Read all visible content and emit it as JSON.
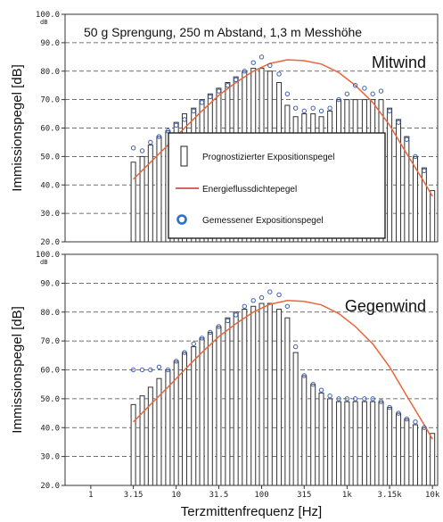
{
  "chart_data": [
    {
      "type": "bar",
      "title": "50 g Sprengung, 250 m Abstand, 1,3 m Messhöhe",
      "annotation": "Mitwind",
      "ylabel": "Immissionspegel [dB]",
      "yunit": "dB",
      "ylim": [
        20,
        100
      ],
      "ytick_labels": [
        "20.0",
        "30.0",
        "40.0",
        "50.0",
        "60.0",
        "70.0",
        "80.0",
        "90.0",
        "100.0"
      ],
      "grid": "horizontal dashed",
      "legend_placement": "center-right",
      "legend": [
        "Prognostizierter Expositionspegel",
        "Energieflussdichtepegel",
        "Gemessener Expositionspegel"
      ],
      "series": [
        {
          "name": "Prognostizierter Expositionspegel",
          "kind": "bar",
          "x": [
            3.15,
            4,
            5,
            6.3,
            8,
            10,
            12.5,
            16,
            20,
            25,
            31.5,
            40,
            50,
            63,
            80,
            100,
            125,
            160,
            200,
            250,
            315,
            400,
            500,
            630,
            800,
            1000,
            1250,
            1600,
            2000,
            2500,
            3150,
            4000,
            5000,
            6300,
            8000,
            10000
          ],
          "values": [
            48,
            50,
            54,
            57,
            59,
            62,
            65,
            67,
            70,
            72,
            74,
            76,
            78,
            80,
            81,
            81,
            80,
            76,
            68,
            64,
            65,
            65,
            64,
            66,
            70,
            70,
            70,
            70,
            70,
            70,
            67,
            63,
            57,
            50,
            46,
            38
          ]
        },
        {
          "name": "Energieflussdichtepegel",
          "kind": "line",
          "color": "#e8663a",
          "x": [
            3.15,
            5,
            8,
            12.5,
            20,
            31.5,
            50,
            80,
            125,
            200,
            315,
            500,
            800,
            1250,
            2000,
            3150,
            5000,
            8000,
            10000
          ],
          "values": [
            42,
            48,
            54,
            60,
            66,
            71.5,
            76,
            80,
            82.7,
            84,
            83.7,
            82.5,
            79.5,
            75,
            69,
            61,
            51,
            41,
            36
          ]
        },
        {
          "name": "Gemessener Expositionspegel",
          "kind": "scatter",
          "color": "#3d5fb0",
          "x": [
            3.15,
            4,
            5,
            6.3,
            8,
            10,
            12.5,
            16,
            20,
            25,
            31.5,
            40,
            50,
            63,
            80,
            100,
            125,
            160,
            200,
            250,
            315,
            400,
            500,
            630,
            800,
            1000,
            1250,
            1600,
            2000,
            2500,
            3150,
            4000,
            5000,
            6300,
            8000
          ],
          "values": [
            53,
            52,
            55,
            57,
            59,
            61,
            63,
            66,
            69,
            71,
            73,
            75,
            77,
            80,
            83,
            85,
            82,
            79,
            72,
            67,
            66,
            67,
            66,
            67,
            70,
            72,
            75,
            74,
            72,
            73,
            66,
            62,
            56,
            50,
            45
          ]
        }
      ]
    },
    {
      "type": "bar",
      "annotation": "Gegenwind",
      "ylabel": "Immissionspegel [dB]",
      "yunit": "dB",
      "xlabel": "Terzmittenfrequenz [Hz]",
      "xtick_labels": [
        "1",
        "3.15",
        "10",
        "31.5",
        "100",
        "315",
        "1k",
        "3.15k",
        "10k"
      ],
      "ylim": [
        20,
        100
      ],
      "ytick_labels": [
        "20.0",
        "30.0",
        "40.0",
        "50.0",
        "60.0",
        "70.0",
        "80.0",
        "90.0",
        "100.0"
      ],
      "grid": "horizontal dashed",
      "series": [
        {
          "name": "Prognostizierter Expositionspegel",
          "kind": "bar",
          "x": [
            3.15,
            4,
            5,
            6.3,
            8,
            10,
            12.5,
            16,
            20,
            25,
            31.5,
            40,
            50,
            63,
            80,
            100,
            125,
            160,
            200,
            250,
            315,
            400,
            500,
            630,
            800,
            1000,
            1250,
            1600,
            2000,
            2500,
            3150,
            4000,
            5000,
            6300,
            8000,
            10000
          ],
          "values": [
            48,
            51,
            54,
            57,
            60,
            63,
            66,
            68,
            71,
            73,
            75,
            78,
            80,
            81,
            82,
            83,
            83,
            81,
            78,
            66,
            58,
            55,
            52,
            50,
            49,
            49,
            49,
            49,
            49,
            49,
            47,
            45,
            43,
            41,
            40,
            38
          ]
        },
        {
          "name": "Energieflussdichtepegel",
          "kind": "line",
          "color": "#e8663a",
          "x": [
            3.15,
            5,
            8,
            12.5,
            20,
            31.5,
            50,
            80,
            125,
            200,
            315,
            500,
            800,
            1250,
            2000,
            3150,
            5000,
            8000,
            10000
          ],
          "values": [
            42,
            48,
            54,
            60,
            66,
            71.5,
            76,
            80,
            82.7,
            84,
            83.7,
            82.5,
            79.5,
            75,
            69,
            61,
            51,
            41,
            36
          ]
        },
        {
          "name": "Gemessener Expositionspegel",
          "kind": "scatter",
          "color": "#3d5fb0",
          "x": [
            3.15,
            4,
            5,
            6.3,
            8,
            10,
            12.5,
            16,
            20,
            25,
            31.5,
            40,
            50,
            63,
            80,
            100,
            125,
            160,
            200,
            250,
            315,
            400,
            500,
            630,
            800,
            1000,
            1250,
            1600,
            2000,
            2500,
            3150,
            4000,
            5000,
            6300,
            8000
          ],
          "values": [
            60,
            60,
            60,
            61,
            60,
            63,
            66,
            69,
            71,
            73,
            75,
            77,
            79,
            82,
            84,
            85,
            87,
            86,
            82,
            68,
            58,
            55,
            53,
            51,
            50,
            50,
            50,
            50,
            50,
            49,
            47,
            45,
            43,
            42,
            40
          ]
        }
      ]
    }
  ]
}
